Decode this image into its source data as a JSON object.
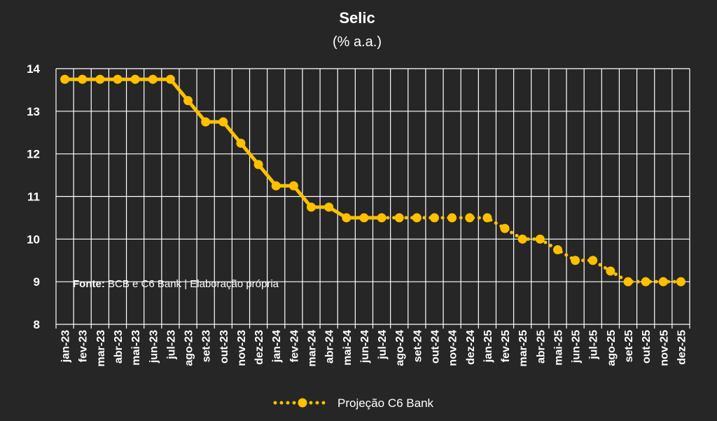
{
  "chart_data": {
    "type": "line",
    "title": "Selic",
    "subtitle": "(% a.a.)",
    "xlabel": "",
    "ylabel": "",
    "ylim": [
      8,
      14
    ],
    "yticks": [
      8,
      9,
      10,
      11,
      12,
      13,
      14
    ],
    "grid": true,
    "legend_position": "bottom",
    "colors": {
      "background": "#262626",
      "series": "#FFC000",
      "grid": "#ffffff",
      "text": "#ffffff"
    },
    "categories": [
      "jan-23",
      "fev-23",
      "mar-23",
      "abr-23",
      "mai-23",
      "jun-23",
      "jul-23",
      "ago-23",
      "set-23",
      "out-23",
      "nov-23",
      "dez-23",
      "jan-24",
      "fev-24",
      "mar-24",
      "abr-24",
      "mai-24",
      "jun-24",
      "jul-24",
      "ago-24",
      "set-24",
      "out-24",
      "nov-24",
      "dez-24",
      "jan-25",
      "fev-25",
      "mar-25",
      "abr-25",
      "mai-25",
      "jun-25",
      "jul-25",
      "ago-25",
      "set-25",
      "out-25",
      "nov-25",
      "dez-25"
    ],
    "series": [
      {
        "name": "Projeção C6 Bank",
        "values": [
          13.75,
          13.75,
          13.75,
          13.75,
          13.75,
          13.75,
          13.75,
          13.25,
          12.75,
          12.75,
          12.25,
          11.75,
          11.25,
          11.25,
          10.75,
          10.75,
          10.5,
          10.5,
          10.5,
          10.5,
          10.5,
          10.5,
          10.5,
          10.5,
          10.5,
          10.25,
          10.0,
          10.0,
          9.75,
          9.5,
          9.5,
          9.25,
          9.0,
          9.0,
          9.0,
          9.0
        ],
        "solid_until": "jul-24"
      }
    ],
    "source_label": "Fonte:",
    "source_text": " BCB e C6 Bank | Elaboração própria"
  }
}
